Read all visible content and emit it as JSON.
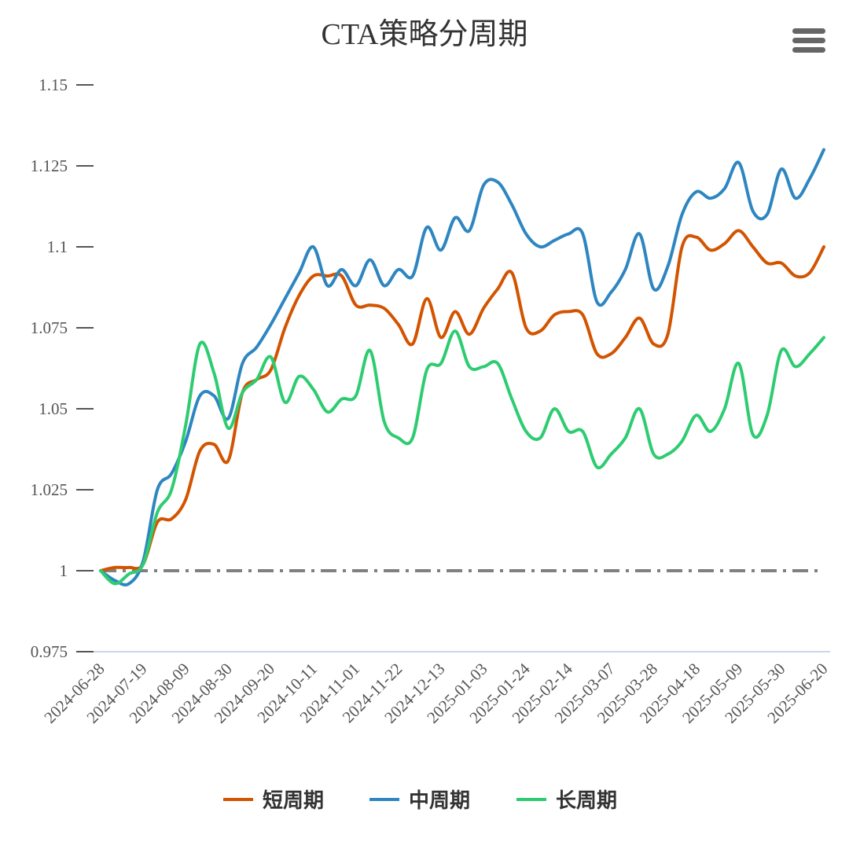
{
  "chart_data": {
    "type": "line",
    "title": "CTA策略分周期",
    "categories": [
      "2024-06-28",
      null,
      null,
      "2024-07-19",
      null,
      null,
      "2024-08-09",
      null,
      null,
      "2024-08-30",
      null,
      null,
      "2024-09-20",
      null,
      null,
      "2024-10-11",
      null,
      null,
      "2024-11-01",
      null,
      null,
      "2024-11-22",
      null,
      null,
      "2024-12-13",
      null,
      null,
      "2025-01-03",
      null,
      null,
      "2025-01-24",
      null,
      null,
      "2025-02-14",
      null,
      null,
      "2025-03-07",
      null,
      null,
      "2025-03-28",
      null,
      null,
      "2025-04-18",
      null,
      null,
      "2025-05-09",
      null,
      null,
      "2025-05-30",
      null,
      null,
      "2025-06-20"
    ],
    "series": [
      {
        "name": "短周期",
        "color": "#d35400",
        "values": [
          1.0,
          1.001,
          1.001,
          1.002,
          1.015,
          1.016,
          1.022,
          1.037,
          1.039,
          1.034,
          1.055,
          1.059,
          1.062,
          1.075,
          1.085,
          1.091,
          1.091,
          1.091,
          1.082,
          1.082,
          1.081,
          1.076,
          1.07,
          1.084,
          1.072,
          1.08,
          1.073,
          1.081,
          1.087,
          1.092,
          1.075,
          1.074,
          1.079,
          1.08,
          1.079,
          1.067,
          1.067,
          1.072,
          1.078,
          1.07,
          1.073,
          1.1,
          1.103,
          1.099,
          1.101,
          1.105,
          1.1,
          1.095,
          1.095,
          1.091,
          1.092,
          1.1
        ]
      },
      {
        "name": "中周期",
        "color": "#2e86c1",
        "values": [
          1.0,
          0.997,
          0.996,
          1.003,
          1.025,
          1.03,
          1.04,
          1.054,
          1.054,
          1.047,
          1.064,
          1.069,
          1.076,
          1.084,
          1.092,
          1.1,
          1.088,
          1.093,
          1.088,
          1.096,
          1.088,
          1.093,
          1.091,
          1.106,
          1.099,
          1.109,
          1.105,
          1.119,
          1.12,
          1.113,
          1.104,
          1.1,
          1.102,
          1.104,
          1.104,
          1.083,
          1.086,
          1.093,
          1.104,
          1.087,
          1.094,
          1.11,
          1.117,
          1.115,
          1.118,
          1.126,
          1.111,
          1.11,
          1.124,
          1.115,
          1.121,
          1.13
        ]
      },
      {
        "name": "长周期",
        "color": "#2ecc71",
        "values": [
          1.0,
          0.996,
          0.999,
          1.002,
          1.018,
          1.025,
          1.045,
          1.07,
          1.061,
          1.044,
          1.055,
          1.059,
          1.066,
          1.052,
          1.06,
          1.056,
          1.049,
          1.053,
          1.054,
          1.068,
          1.046,
          1.041,
          1.041,
          1.062,
          1.064,
          1.074,
          1.063,
          1.063,
          1.064,
          1.053,
          1.043,
          1.041,
          1.05,
          1.043,
          1.043,
          1.032,
          1.036,
          1.041,
          1.05,
          1.036,
          1.036,
          1.04,
          1.048,
          1.043,
          1.05,
          1.064,
          1.042,
          1.048,
          1.068,
          1.063,
          1.067,
          1.072
        ]
      }
    ],
    "reference_line": 1,
    "ylim": [
      0.975,
      1.15
    ],
    "yticks": [
      0.975,
      1,
      1.025,
      1.05,
      1.075,
      1.1,
      1.125,
      1.15
    ]
  }
}
